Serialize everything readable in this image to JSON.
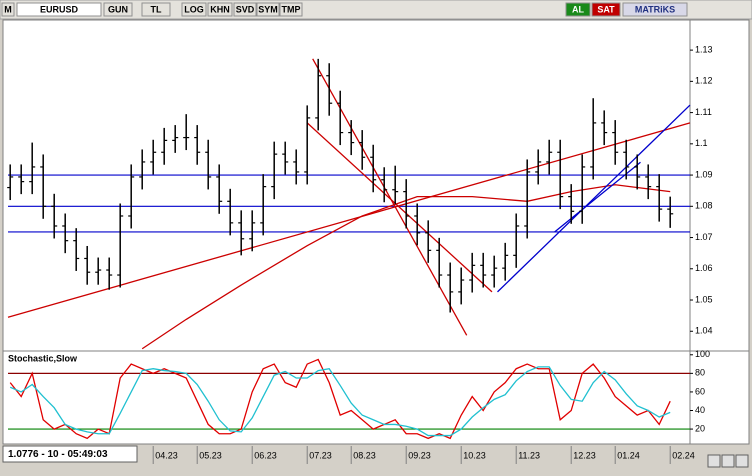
{
  "toolbar": {
    "menu": "M",
    "symbol": "EURUSD",
    "buttons": [
      "GUN",
      "TL",
      "LOG",
      "KHN",
      "SVD",
      "SYM",
      "TMP"
    ],
    "buy": "AL",
    "sell": "SAT",
    "brand": "MATRiKS"
  },
  "status": "1.0776 - 10 - 05:49:03",
  "chart_data": [
    {
      "type": "ohlc",
      "color": "#000000",
      "categories": [
        null,
        null,
        null,
        null,
        null,
        null,
        null,
        null,
        null,
        null,
        null,
        null,
        null,
        "04.23",
        null,
        null,
        null,
        "05.23",
        null,
        null,
        null,
        null,
        "06.23",
        null,
        null,
        null,
        null,
        "07.23",
        null,
        null,
        null,
        "08.23",
        null,
        null,
        null,
        null,
        "09.23",
        null,
        null,
        null,
        null,
        "10.23",
        null,
        null,
        null,
        null,
        "11.23",
        null,
        null,
        null,
        null,
        "12.23",
        null,
        null,
        null,
        "01.24",
        null,
        null,
        null,
        null,
        "02.24"
      ],
      "xlim": [
        -0.2,
        61.8
      ],
      "open": [
        1.086,
        1.0894,
        1.0879,
        1.0926,
        1.08,
        1.0737,
        1.069,
        1.0633,
        1.0589,
        1.0596,
        1.058,
        1.0769,
        1.0894,
        1.0942,
        1.0973,
        1.1011,
        1.102,
        1.102,
        1.0973,
        1.0894,
        1.0816,
        1.0747,
        1.0696,
        1.0747,
        1.0863,
        1.0967,
        1.0942,
        1.091,
        1.1083,
        1.1218,
        1.113,
        1.1036,
        1.1004,
        1.0957,
        1.0885,
        1.0853,
        1.0847,
        1.0769,
        1.0715,
        1.0659,
        1.058,
        1.0526,
        1.0564,
        1.0611,
        1.058,
        1.0602,
        1.0643,
        1.0737,
        1.091,
        1.0942,
        1.0973,
        1.0831,
        1.0784,
        1.0926,
        1.1067,
        1.1036,
        1.0973,
        1.0926,
        1.0894,
        1.0863,
        1.0791
      ],
      "high": [
        1.0934,
        1.0934,
        1.1004,
        1.0966,
        1.084,
        1.0777,
        1.073,
        1.0673,
        1.0636,
        1.0636,
        1.0809,
        1.0934,
        1.0982,
        1.1013,
        1.1051,
        1.106,
        1.1095,
        1.106,
        1.1013,
        1.0934,
        1.0856,
        1.0787,
        1.0787,
        1.0903,
        1.1007,
        1.1007,
        1.0982,
        1.1123,
        1.1272,
        1.1258,
        1.117,
        1.1076,
        1.1044,
        1.0997,
        1.0925,
        1.093,
        1.0887,
        1.0809,
        1.0755,
        1.0699,
        1.062,
        1.0604,
        1.0651,
        1.0651,
        1.0642,
        1.0683,
        1.0777,
        1.095,
        1.0982,
        1.1013,
        1.1013,
        1.0871,
        1.0966,
        1.1146,
        1.1107,
        1.1076,
        1.1013,
        1.0966,
        1.0934,
        1.0903,
        1.0831
      ],
      "low": [
        1.082,
        1.0839,
        1.0839,
        1.076,
        1.0697,
        1.065,
        1.0593,
        1.0549,
        1.0549,
        1.0533,
        1.054,
        1.0729,
        1.0854,
        1.0902,
        1.0933,
        1.0971,
        1.098,
        1.0933,
        1.0854,
        1.0776,
        1.0707,
        1.0643,
        1.0656,
        1.0707,
        1.0823,
        1.0902,
        1.087,
        1.087,
        1.1043,
        1.109,
        1.0996,
        1.0964,
        1.0917,
        1.0845,
        1.0813,
        1.0807,
        1.0729,
        1.0675,
        1.0619,
        1.054,
        1.046,
        1.0486,
        1.0524,
        1.054,
        1.054,
        1.0562,
        1.0603,
        1.0697,
        1.087,
        1.0902,
        1.0791,
        1.0744,
        1.0744,
        1.0886,
        1.0996,
        1.0933,
        1.0886,
        1.0854,
        1.0823,
        1.0751,
        1.0731
      ],
      "close": [
        1.0894,
        1.0879,
        1.0926,
        1.08,
        1.0737,
        1.069,
        1.0633,
        1.0589,
        1.0596,
        1.058,
        1.0769,
        1.0894,
        1.0942,
        1.0973,
        1.1011,
        1.102,
        1.102,
        1.0973,
        1.0894,
        1.0816,
        1.0747,
        1.0696,
        1.0747,
        1.0863,
        1.0967,
        1.0942,
        1.091,
        1.1083,
        1.1218,
        1.113,
        1.1036,
        1.1004,
        1.0957,
        1.0885,
        1.0853,
        1.0847,
        1.0769,
        1.0715,
        1.0659,
        1.058,
        1.0526,
        1.0564,
        1.0611,
        1.058,
        1.0602,
        1.0643,
        1.0737,
        1.091,
        1.0942,
        1.0973,
        1.0831,
        1.0784,
        1.0926,
        1.1067,
        1.1036,
        1.0973,
        1.0926,
        1.0894,
        1.0863,
        1.0791,
        1.0776
      ],
      "ylim": [
        1.034,
        1.139
      ],
      "yticks": [
        1.04,
        1.05,
        1.06,
        1.07,
        1.08,
        1.09,
        1.1,
        1.11,
        1.12,
        1.13
      ],
      "hlines": [
        {
          "value": 1.09,
          "color": "#0000cc"
        },
        {
          "value": 1.08,
          "color": "#0000cc"
        },
        {
          "value": 1.0718,
          "color": "#0000cc"
        }
      ],
      "lines": [
        {
          "color": "#cc0000",
          "x": [
            12,
            16,
            21,
            27,
            32,
            37,
            42,
            47,
            51,
            55,
            60
          ],
          "y": [
            1.0344,
            1.0438,
            1.0548,
            1.0674,
            1.0769,
            1.0831,
            1.0831,
            1.0816,
            1.0847,
            1.0869,
            1.0847
          ]
        },
        {
          "color": "#cc0000",
          "x": [
            -0.2,
            61.8
          ],
          "y": [
            1.0445,
            1.1067
          ]
        },
        {
          "color": "#cc0000",
          "x": [
            27.5,
            41.5
          ],
          "y": [
            1.1272,
            1.0387
          ]
        },
        {
          "color": "#cc0000",
          "x": [
            27,
            43.8
          ],
          "y": [
            1.1067,
            1.0526
          ]
        },
        {
          "color": "#0000cc",
          "x": [
            44.3,
            61.8
          ],
          "y": [
            1.0526,
            1.1124
          ]
        },
        {
          "color": "#0000cc",
          "x": [
            49.5,
            57.3
          ],
          "y": [
            1.0718,
            1.0941
          ]
        }
      ]
    },
    {
      "type": "line",
      "title": "Stochastic,Slow",
      "xlim": [
        -0.2,
        61.8
      ],
      "ylim": [
        5,
        103
      ],
      "yticks": [
        20,
        40,
        60,
        80,
        100
      ],
      "hlines": [
        {
          "value": 80,
          "color": "#8b0000"
        },
        {
          "value": 20,
          "color": "#008000"
        }
      ],
      "series": [
        {
          "color": "#e00000",
          "values": [
            70,
            55,
            80,
            30,
            20,
            25,
            15,
            10,
            20,
            15,
            75,
            90,
            85,
            80,
            85,
            80,
            75,
            50,
            25,
            15,
            15,
            20,
            60,
            85,
            90,
            70,
            65,
            90,
            95,
            70,
            35,
            40,
            30,
            20,
            25,
            30,
            15,
            15,
            10,
            15,
            10,
            35,
            55,
            40,
            60,
            70,
            85,
            90,
            85,
            85,
            30,
            40,
            80,
            90,
            75,
            55,
            45,
            35,
            40,
            25,
            50
          ]
        },
        {
          "color": "#20c0d0",
          "values": [
            65,
            60,
            68,
            55,
            43,
            25,
            20,
            17,
            15,
            15,
            37,
            60,
            83,
            85,
            83,
            82,
            80,
            68,
            50,
            30,
            18,
            17,
            32,
            55,
            78,
            82,
            75,
            75,
            83,
            85,
            67,
            48,
            35,
            30,
            25,
            25,
            23,
            20,
            13,
            13,
            13,
            20,
            33,
            43,
            52,
            57,
            72,
            82,
            87,
            87,
            67,
            52,
            50,
            70,
            82,
            73,
            58,
            45,
            40,
            33,
            38
          ]
        }
      ]
    }
  ]
}
